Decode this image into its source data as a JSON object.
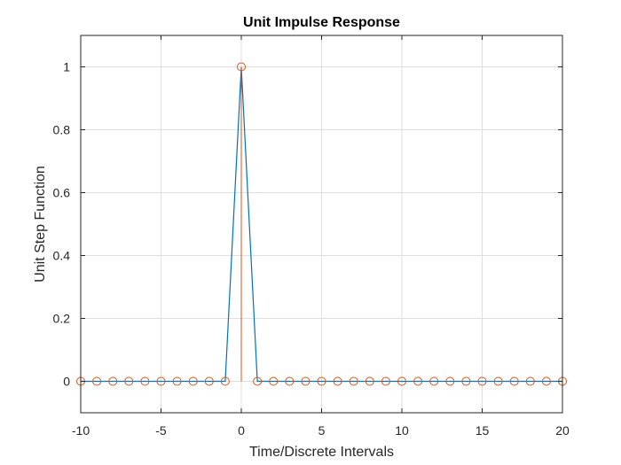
{
  "chart_data": {
    "type": "line",
    "title": "Unit Impulse Response",
    "xlabel": "Time/Discrete Intervals",
    "ylabel": "Unit Step Function",
    "xlim": [
      -10,
      20
    ],
    "ylim": [
      -0.1,
      1.1
    ],
    "xticks": [
      -10,
      -5,
      0,
      5,
      10,
      15,
      20
    ],
    "xtick_labels": [
      "-10",
      "-5",
      "0",
      "5",
      "10",
      "15",
      "20"
    ],
    "yticks": [
      0,
      0.2,
      0.4,
      0.6,
      0.8,
      1
    ],
    "ytick_labels": [
      "0",
      "0.2",
      "0.4",
      "0.6",
      "0.8",
      "1"
    ],
    "grid": true,
    "x": [
      -10,
      -9,
      -8,
      -7,
      -6,
      -5,
      -4,
      -3,
      -2,
      -1,
      0,
      1,
      2,
      3,
      4,
      5,
      6,
      7,
      8,
      9,
      10,
      11,
      12,
      13,
      14,
      15,
      16,
      17,
      18,
      19,
      20
    ],
    "series": [
      {
        "style": "line",
        "color": "#0072BD",
        "values": [
          0,
          0,
          0,
          0,
          0,
          0,
          0,
          0,
          0,
          0,
          1,
          0,
          0,
          0,
          0,
          0,
          0,
          0,
          0,
          0,
          0,
          0,
          0,
          0,
          0,
          0,
          0,
          0,
          0,
          0,
          0
        ]
      },
      {
        "style": "stem",
        "color": "#D95319",
        "values": [
          0,
          0,
          0,
          0,
          0,
          0,
          0,
          0,
          0,
          0,
          1,
          0,
          0,
          0,
          0,
          0,
          0,
          0,
          0,
          0,
          0,
          0,
          0,
          0,
          0,
          0,
          0,
          0,
          0,
          0,
          0
        ]
      }
    ]
  }
}
